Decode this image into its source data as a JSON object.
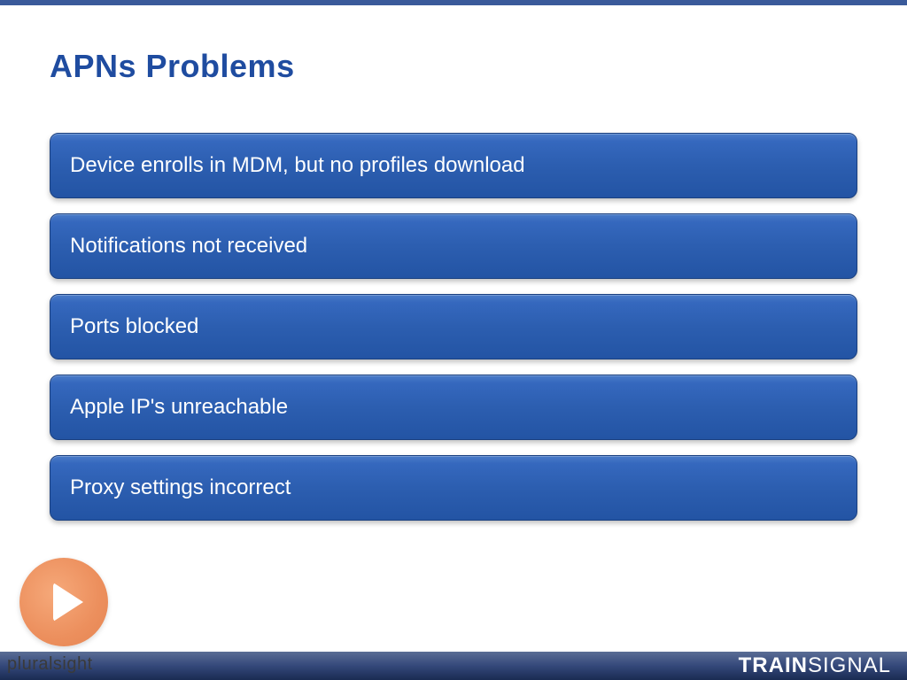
{
  "slide": {
    "title": "APNs Problems",
    "title_color": "#1f4ca0",
    "title_fontsize": 36,
    "background_color": "#ffffff",
    "top_bar_color": "#3a5a9a",
    "bullets": [
      {
        "text": "Device enrolls in MDM, but no profiles download"
      },
      {
        "text": "Notifications not received"
      },
      {
        "text": "Ports blocked"
      },
      {
        "text": "Apple IP's unreachable"
      },
      {
        "text": "Proxy settings incorrect"
      }
    ],
    "bullet_style": {
      "gradient_top": "#4a7bc8",
      "gradient_bottom": "#2354a4",
      "text_color": "#ffffff",
      "fontsize": 24,
      "border_radius": 10,
      "border_color": "#1a4080"
    }
  },
  "footer": {
    "gradient_top": "#5a6d95",
    "gradient_bottom": "#1a2b52",
    "brand_right_bold": "TRAIN",
    "brand_right_light": "SIGNAL",
    "brand_right_color": "#ffffff"
  },
  "watermark": {
    "play_icon_color": "#ec8f5d",
    "play_triangle_color": "#ffffff",
    "text": "pluralsight",
    "text_color": "#3a3a3a"
  }
}
